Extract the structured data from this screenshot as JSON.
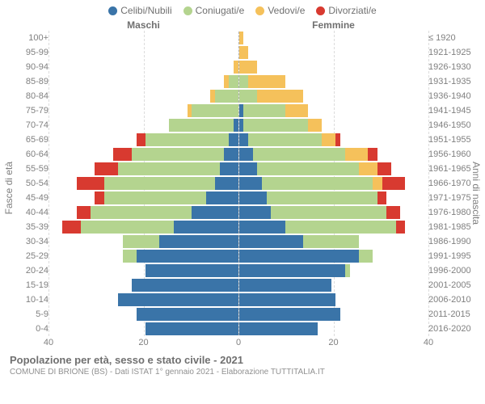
{
  "legend": [
    {
      "label": "Celibi/Nubili",
      "color": "#3a74a8"
    },
    {
      "label": "Coniugati/e",
      "color": "#b4d48f"
    },
    {
      "label": "Vedovi/e",
      "color": "#f5c15b"
    },
    {
      "label": "Divorziati/e",
      "color": "#d83a30"
    }
  ],
  "header_male": "Maschi",
  "header_female": "Femmine",
  "y_label_left": "Fasce di età",
  "y_label_right": "Anni di nascita",
  "x_max": 40,
  "x_ticks": [
    40,
    20,
    0,
    20,
    40
  ],
  "colors": {
    "single": "#3a74a8",
    "married": "#b4d48f",
    "widowed": "#f5c15b",
    "divorced": "#d83a30",
    "grid": "#dcdcdc",
    "axis_text": "#808080",
    "center_line": "#b0b0b0"
  },
  "footer": {
    "title": "Popolazione per età, sesso e stato civile - 2021",
    "subtitle": "COMUNE DI BRIONE (BS) - Dati ISTAT 1° gennaio 2021 - Elaborazione TUTTITALIA.IT"
  },
  "rows": [
    {
      "age": "100+",
      "year": "≤ 1920",
      "m": [
        0,
        0,
        0,
        0
      ],
      "f": [
        0,
        0,
        1,
        0
      ]
    },
    {
      "age": "95-99",
      "year": "1921-1925",
      "m": [
        0,
        0,
        0,
        0
      ],
      "f": [
        0,
        0,
        2,
        0
      ]
    },
    {
      "age": "90-94",
      "year": "1926-1930",
      "m": [
        0,
        0,
        1,
        0
      ],
      "f": [
        0,
        0,
        4,
        0
      ]
    },
    {
      "age": "85-89",
      "year": "1931-1935",
      "m": [
        0,
        2,
        1,
        0
      ],
      "f": [
        0,
        2,
        8,
        0
      ]
    },
    {
      "age": "80-84",
      "year": "1936-1940",
      "m": [
        0,
        5,
        1,
        0
      ],
      "f": [
        0,
        4,
        10,
        0
      ]
    },
    {
      "age": "75-79",
      "year": "1941-1945",
      "m": [
        0,
        10,
        1,
        0
      ],
      "f": [
        1,
        9,
        5,
        0
      ]
    },
    {
      "age": "70-74",
      "year": "1946-1950",
      "m": [
        1,
        14,
        0,
        0
      ],
      "f": [
        1,
        14,
        3,
        0
      ]
    },
    {
      "age": "65-69",
      "year": "1951-1955",
      "m": [
        2,
        18,
        0,
        2
      ],
      "f": [
        2,
        16,
        3,
        1
      ]
    },
    {
      "age": "60-64",
      "year": "1956-1960",
      "m": [
        3,
        20,
        0,
        4
      ],
      "f": [
        3,
        20,
        5,
        2
      ]
    },
    {
      "age": "55-59",
      "year": "1961-1965",
      "m": [
        4,
        22,
        0,
        5
      ],
      "f": [
        4,
        22,
        4,
        3
      ]
    },
    {
      "age": "50-54",
      "year": "1966-1970",
      "m": [
        5,
        24,
        0,
        6
      ],
      "f": [
        5,
        24,
        2,
        5
      ]
    },
    {
      "age": "45-49",
      "year": "1971-1975",
      "m": [
        7,
        22,
        0,
        2
      ],
      "f": [
        6,
        24,
        0,
        2
      ]
    },
    {
      "age": "40-44",
      "year": "1976-1980",
      "m": [
        10,
        22,
        0,
        3
      ],
      "f": [
        7,
        25,
        0,
        3
      ]
    },
    {
      "age": "35-39",
      "year": "1981-1985",
      "m": [
        14,
        20,
        0,
        4
      ],
      "f": [
        10,
        24,
        0,
        2
      ]
    },
    {
      "age": "30-34",
      "year": "1986-1990",
      "m": [
        17,
        8,
        0,
        0
      ],
      "f": [
        14,
        12,
        0,
        0
      ]
    },
    {
      "age": "25-29",
      "year": "1991-1995",
      "m": [
        22,
        3,
        0,
        0
      ],
      "f": [
        26,
        3,
        0,
        0
      ]
    },
    {
      "age": "20-24",
      "year": "1996-2000",
      "m": [
        20,
        0,
        0,
        0
      ],
      "f": [
        23,
        1,
        0,
        0
      ]
    },
    {
      "age": "15-19",
      "year": "2001-2005",
      "m": [
        23,
        0,
        0,
        0
      ],
      "f": [
        20,
        0,
        0,
        0
      ]
    },
    {
      "age": "10-14",
      "year": "2006-2010",
      "m": [
        26,
        0,
        0,
        0
      ],
      "f": [
        21,
        0,
        0,
        0
      ]
    },
    {
      "age": "5-9",
      "year": "2011-2015",
      "m": [
        22,
        0,
        0,
        0
      ],
      "f": [
        22,
        0,
        0,
        0
      ]
    },
    {
      "age": "0-4",
      "year": "2016-2020",
      "m": [
        20,
        0,
        0,
        0
      ],
      "f": [
        17,
        0,
        0,
        0
      ]
    }
  ]
}
